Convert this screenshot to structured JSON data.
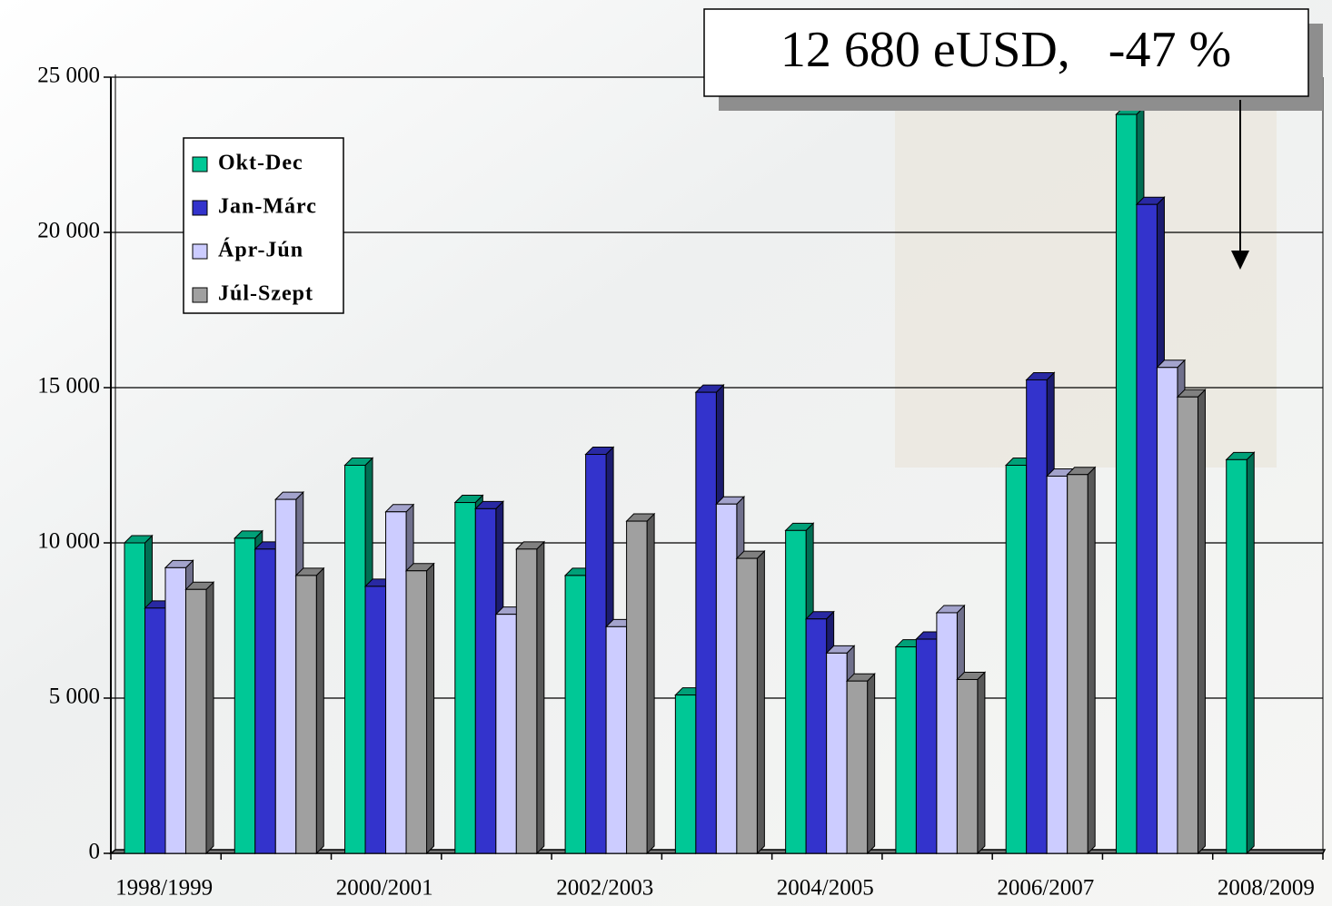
{
  "chart_data": {
    "type": "bar3d",
    "annotation": "12 680 eUSD,   -47 %",
    "categories": [
      "1998/1999",
      null,
      "2000/2001",
      null,
      "2002/2003",
      null,
      "2004/2005",
      null,
      "2006/2007",
      null,
      "2008/2009"
    ],
    "series": [
      {
        "name": "Okt-Dec",
        "color": "#00c896",
        "values": [
          10000,
          10150,
          12500,
          11300,
          8950,
          5100,
          10400,
          6650,
          12500,
          23800,
          12680
        ]
      },
      {
        "name": "Jan-Márc",
        "color": "#3333cc",
        "values": [
          7900,
          9800,
          8600,
          11100,
          12850,
          14850,
          7550,
          6900,
          15250,
          20900,
          null
        ]
      },
      {
        "name": "Ápr-Jún",
        "color": "#ccccff",
        "values": [
          9200,
          11400,
          11000,
          7700,
          7300,
          11250,
          6450,
          7750,
          12150,
          15650,
          null
        ]
      },
      {
        "name": "Júl-Szept",
        "color": "#a0a0a0",
        "values": [
          8500,
          8950,
          9100,
          9800,
          10700,
          9500,
          5550,
          5600,
          12200,
          14700,
          null
        ]
      }
    ],
    "ylim": [
      0,
      25000
    ],
    "yticks": [
      {
        "value": 0,
        "label": "0"
      },
      {
        "value": 5000,
        "label": "5 000"
      },
      {
        "value": 10000,
        "label": "10 000"
      },
      {
        "value": 15000,
        "label": "15 000"
      },
      {
        "value": 20000,
        "label": "20 000"
      },
      {
        "value": 25000,
        "label": "25 000"
      }
    ],
    "grid": true
  }
}
